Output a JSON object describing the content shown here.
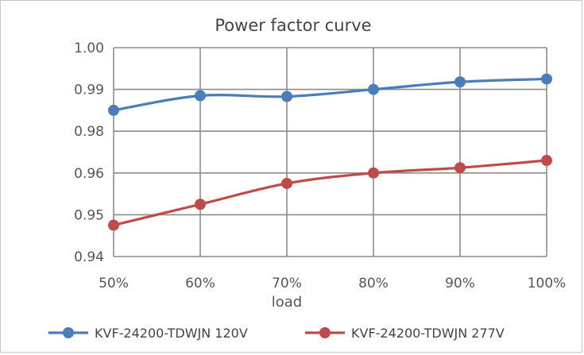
{
  "chart_data": {
    "type": "line",
    "title": "Power factor curve",
    "xlabel": "load",
    "ylabel": "",
    "categories": [
      "50%",
      "60%",
      "70%",
      "80%",
      "90%",
      "100%"
    ],
    "y_tick_labels": [
      "1.00",
      "0.99",
      "0.98",
      "0.96",
      "0.95",
      "0.94"
    ],
    "grid": true,
    "legend_position": "bottom",
    "series": [
      {
        "name": "KVF-24200-TDWJN 120V",
        "color": "#4a7ebb",
        "values": [
          0.985,
          0.9885,
          0.9883,
          0.99,
          0.9918,
          0.9925
        ]
      },
      {
        "name": "KVF-24200-TDWJN 277V",
        "color": "#be4b48",
        "values": [
          0.9475,
          0.9525,
          0.9575,
          0.96,
          0.9625,
          0.966
        ]
      }
    ]
  }
}
